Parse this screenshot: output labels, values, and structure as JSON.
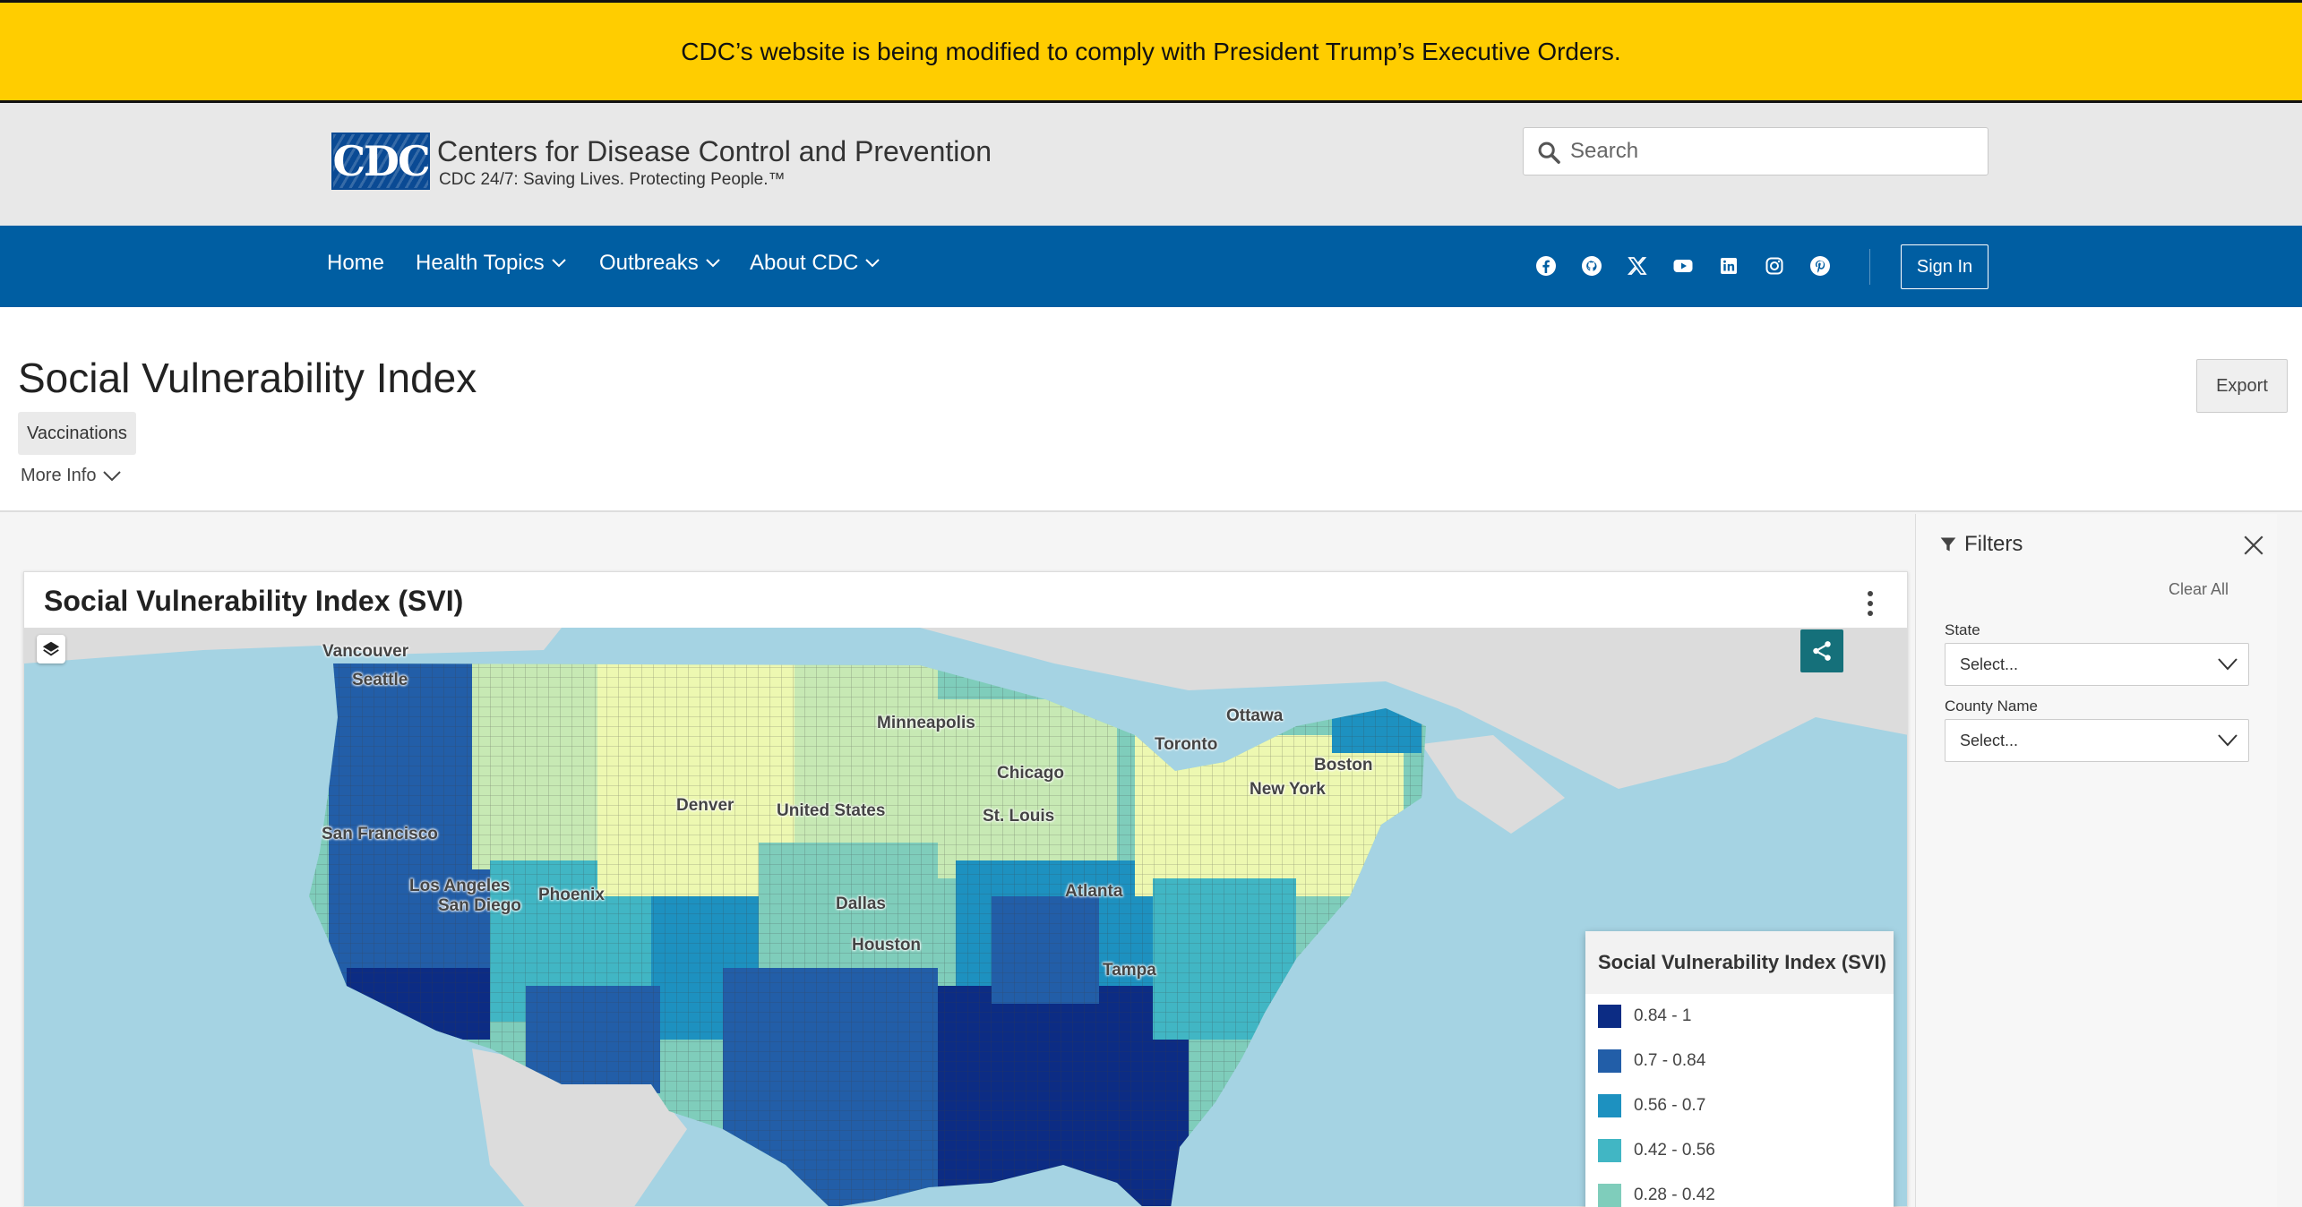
{
  "banner": {
    "text": "CDC’s website is being modified to comply with President Trump’s Executive Orders."
  },
  "header": {
    "logo_text": "CDC",
    "org_name": "Centers for Disease Control and Prevention",
    "tagline": "CDC 24/7: Saving Lives. Protecting People.™",
    "search_placeholder": "Search"
  },
  "nav": {
    "items": [
      {
        "label": "Home",
        "has_dropdown": false
      },
      {
        "label": "Health Topics",
        "has_dropdown": true
      },
      {
        "label": "Outbreaks",
        "has_dropdown": true
      },
      {
        "label": "About CDC",
        "has_dropdown": true
      }
    ],
    "social": [
      "facebook-icon",
      "github-icon",
      "x-icon",
      "youtube-icon",
      "linkedin-icon",
      "instagram-icon",
      "pinterest-icon"
    ],
    "sign_in_label": "Sign In"
  },
  "page": {
    "title": "Social Vulnerability Index",
    "tag": "Vaccinations",
    "more_info_label": "More Info",
    "export_label": "Export"
  },
  "map_card": {
    "title": "Social Vulnerability Index (SVI)",
    "cities": [
      "Vancouver",
      "Seattle",
      "Ottawa",
      "Minneapolis",
      "Toronto",
      "Boston",
      "Chicago",
      "New York",
      "Denver",
      "United States",
      "St. Louis",
      "San Francisco",
      "Los Angeles",
      "San Diego",
      "Phoenix",
      "Dallas",
      "Atlanta",
      "Houston",
      "Tampa"
    ]
  },
  "legend": {
    "title": "Social Vulnerability Index (SVI)",
    "items": [
      {
        "label": "0.84 - 1",
        "color": "#0c2c84"
      },
      {
        "label": "0.7 - 0.84",
        "color": "#225ea8"
      },
      {
        "label": "0.56 - 0.7",
        "color": "#1d91c0"
      },
      {
        "label": "0.42 - 0.56",
        "color": "#41b6c4"
      },
      {
        "label": "0.28 - 0.42",
        "color": "#7fcdbb"
      }
    ]
  },
  "filters": {
    "title": "Filters",
    "clear_all_label": "Clear All",
    "state_label": "State",
    "state_value": "Select...",
    "county_label": "County Name",
    "county_value": "Select..."
  },
  "colors": {
    "banner": "#ffcd00",
    "nav": "#005ea2",
    "water": "#a5d3e3",
    "land": "#dcdcdc",
    "share": "#15707a"
  }
}
